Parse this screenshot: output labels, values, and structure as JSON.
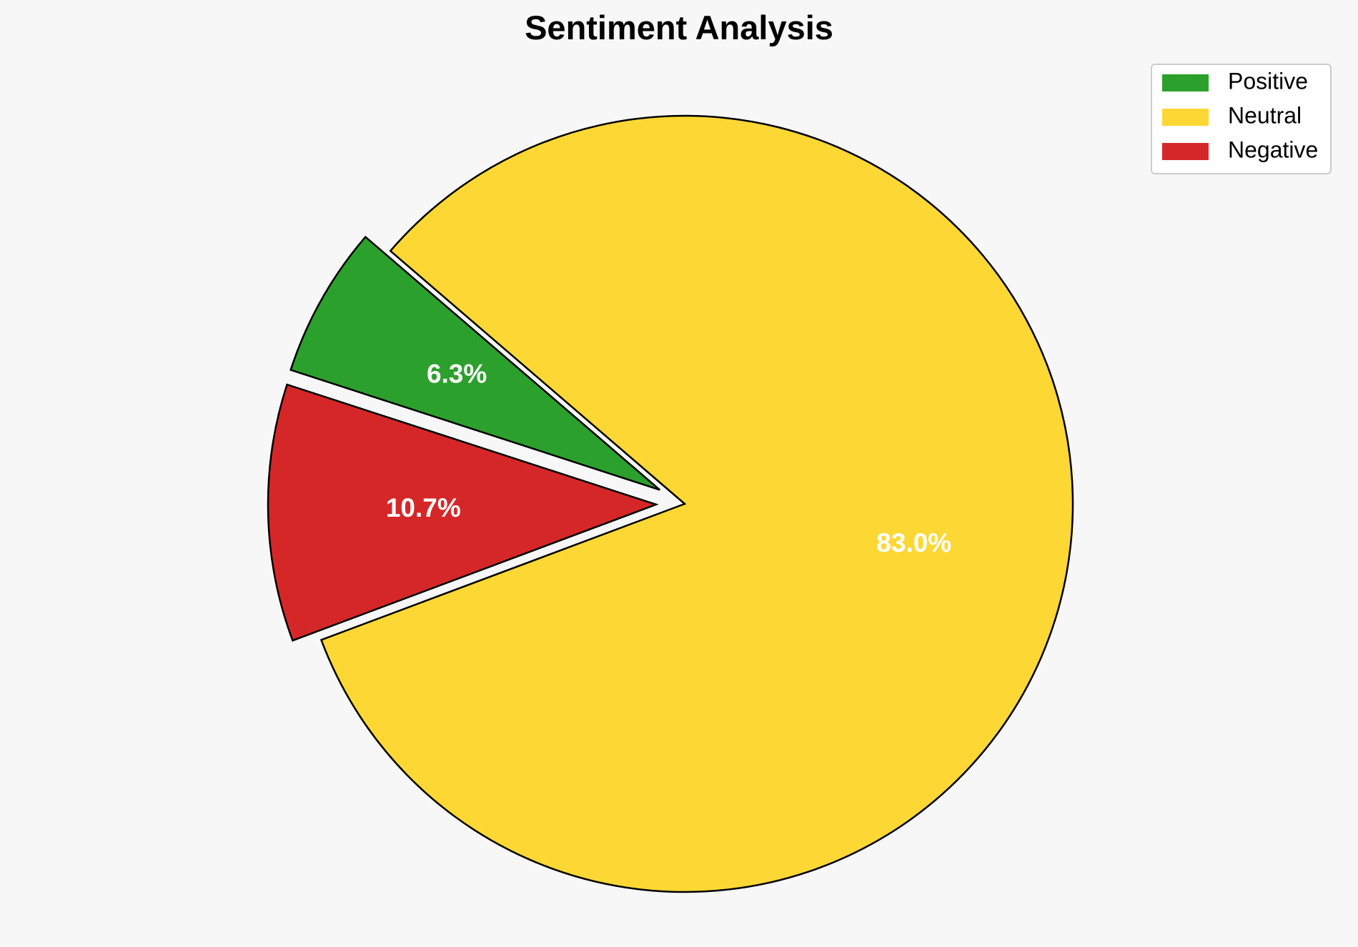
{
  "chart_data": {
    "type": "pie",
    "title": "Sentiment Analysis",
    "categories": [
      "Positive",
      "Neutral",
      "Negative"
    ],
    "values": [
      6.3,
      83.0,
      10.7
    ],
    "labels": [
      "6.3%",
      "83.0%",
      "10.7%"
    ],
    "colors": [
      "#2ca02c",
      "#fdd835",
      "#d62728"
    ],
    "exploded": [
      true,
      false,
      true
    ],
    "start_angle_deg": 162,
    "direction": "clockwise",
    "edge_color": "#000000",
    "legend": {
      "placement": "top-right",
      "entries": [
        "Positive",
        "Neutral",
        "Negative"
      ]
    }
  }
}
